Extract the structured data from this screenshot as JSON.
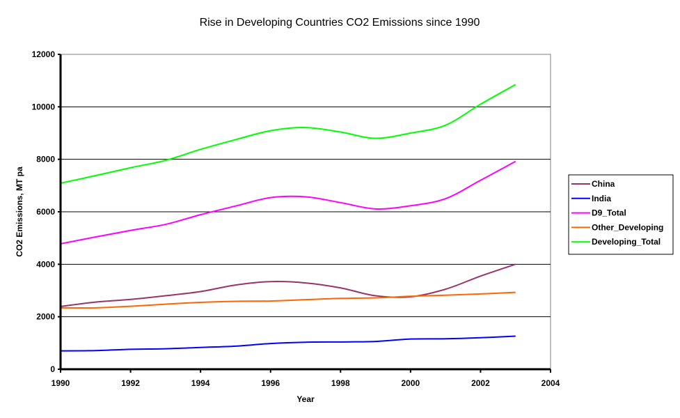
{
  "chart_data": {
    "type": "line",
    "title": "Rise in Developing Countries CO2 Emissions since 1990",
    "xlabel": "Year",
    "ylabel": "CO2 Emissions, MT pa",
    "xlim": [
      1990,
      2004
    ],
    "ylim": [
      0,
      12000
    ],
    "xticks": [
      1990,
      1992,
      1994,
      1996,
      1998,
      2000,
      2002,
      2004
    ],
    "yticks": [
      0,
      2000,
      4000,
      6000,
      8000,
      10000,
      12000
    ],
    "xtick_labels": [
      "1990",
      "1992",
      "1994",
      "1996",
      "1998",
      "2000",
      "2002",
      "2004"
    ],
    "ytick_labels": [
      "0",
      "2000",
      "4000",
      "6000",
      "8000",
      "10000",
      "12000"
    ],
    "grid": "horizontal",
    "legend_position": "right",
    "x": [
      1990,
      1991,
      1992,
      1993,
      1994,
      1995,
      1996,
      1997,
      1998,
      1999,
      2000,
      2001,
      2002,
      2003
    ],
    "series": [
      {
        "name": "China",
        "color": "#993366",
        "values": [
          2390,
          2560,
          2660,
          2800,
          2960,
          3210,
          3340,
          3290,
          3100,
          2800,
          2760,
          3050,
          3550,
          4000
        ]
      },
      {
        "name": "India",
        "color": "#0000ff",
        "values": [
          700,
          710,
          760,
          780,
          830,
          880,
          980,
          1030,
          1040,
          1060,
          1150,
          1160,
          1200,
          1260
        ]
      },
      {
        "name": "D9_Total",
        "color": "#ff00ff",
        "values": [
          4780,
          5040,
          5290,
          5520,
          5890,
          6220,
          6540,
          6570,
          6350,
          6110,
          6230,
          6500,
          7200,
          7920
        ]
      },
      {
        "name": "Other_Developing",
        "color": "#ff6600",
        "values": [
          2340,
          2340,
          2400,
          2480,
          2550,
          2590,
          2600,
          2650,
          2700,
          2720,
          2780,
          2820,
          2870,
          2930
        ]
      },
      {
        "name": "Developing_Total",
        "color": "#00ff00",
        "values": [
          7090,
          7380,
          7680,
          7960,
          8380,
          8750,
          9090,
          9210,
          9040,
          8800,
          9000,
          9300,
          10100,
          10850
        ]
      }
    ]
  }
}
